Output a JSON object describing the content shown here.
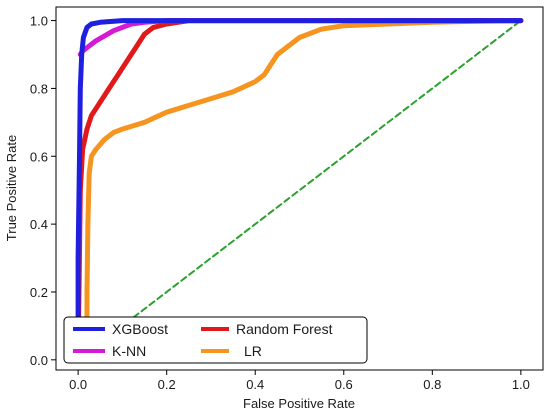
{
  "chart_data": {
    "type": "line",
    "xlabel": "False Positive Rate",
    "ylabel": "True Positive Rate",
    "xlim": [
      -0.05,
      1.05
    ],
    "ylim": [
      -0.03,
      1.04
    ],
    "xticks": [
      0.0,
      0.2,
      0.4,
      0.6,
      0.8,
      1.0
    ],
    "xtick_labels": [
      "0.0",
      "0.2",
      "0.4",
      "0.6",
      "0.8",
      "1.0"
    ],
    "yticks": [
      0.0,
      0.2,
      0.4,
      0.6,
      0.8,
      1.0
    ],
    "ytick_labels": [
      "0.0",
      "0.2",
      "0.4",
      "0.6",
      "0.8",
      "1.0"
    ],
    "grid": false,
    "legend_position": "bottom-left",
    "series": [
      {
        "name": "XGBoost",
        "color": "#1f1fe0",
        "x": [
          0.0,
          0.0,
          0.003,
          0.005,
          0.008,
          0.012,
          0.02,
          0.03,
          0.05,
          0.1,
          0.2,
          0.4,
          0.6,
          0.8,
          1.0
        ],
        "y": [
          0.0,
          0.3,
          0.6,
          0.8,
          0.9,
          0.95,
          0.98,
          0.99,
          0.995,
          1.0,
          1.0,
          1.0,
          1.0,
          1.0,
          1.0
        ]
      },
      {
        "name": "K-NN",
        "color": "#d41ad4",
        "x": [
          0.005,
          0.01,
          0.02,
          0.04,
          0.06,
          0.08,
          0.1,
          0.12,
          0.15,
          0.2,
          0.4,
          0.6,
          0.8,
          1.0
        ],
        "y": [
          0.9,
          0.91,
          0.92,
          0.94,
          0.955,
          0.97,
          0.98,
          0.99,
          0.995,
          1.0,
          1.0,
          1.0,
          1.0,
          1.0
        ]
      },
      {
        "name": "Random Forest",
        "color": "#e01a1a",
        "x": [
          0.0,
          0.005,
          0.01,
          0.02,
          0.03,
          0.05,
          0.07,
          0.09,
          0.11,
          0.13,
          0.15,
          0.17,
          0.2,
          0.25,
          0.4,
          0.6,
          0.8,
          1.0
        ],
        "y": [
          0.0,
          0.5,
          0.62,
          0.68,
          0.72,
          0.76,
          0.8,
          0.84,
          0.88,
          0.92,
          0.96,
          0.98,
          0.99,
          1.0,
          1.0,
          1.0,
          1.0,
          1.0
        ]
      },
      {
        "name": "LR",
        "color": "#f5941e",
        "x": [
          0.02,
          0.02,
          0.022,
          0.025,
          0.03,
          0.04,
          0.06,
          0.08,
          0.1,
          0.15,
          0.2,
          0.25,
          0.3,
          0.35,
          0.4,
          0.42,
          0.45,
          0.5,
          0.55,
          0.6,
          0.7,
          0.8,
          0.9,
          1.0
        ],
        "y": [
          0.0,
          0.2,
          0.4,
          0.55,
          0.6,
          0.62,
          0.65,
          0.67,
          0.68,
          0.7,
          0.73,
          0.75,
          0.77,
          0.79,
          0.82,
          0.84,
          0.9,
          0.95,
          0.975,
          0.985,
          0.99,
          0.995,
          0.998,
          1.0
        ]
      },
      {
        "name": "",
        "color": "#2ca02c",
        "dashed": true,
        "x": [
          0.0,
          1.0
        ],
        "y": [
          0.0,
          1.0
        ]
      }
    ]
  }
}
